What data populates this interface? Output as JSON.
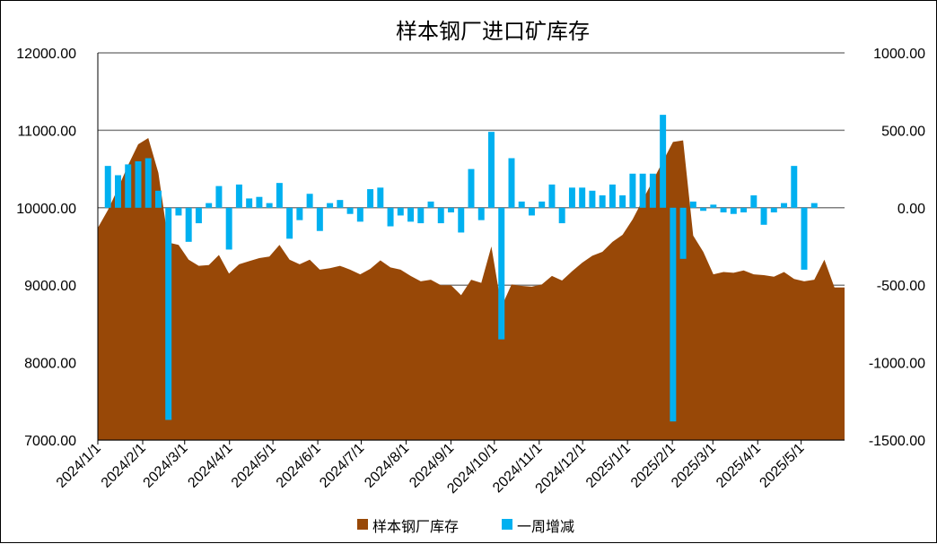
{
  "chart_data": {
    "type": "bar+area",
    "title": "样本钢厂进口矿库存",
    "left_axis": {
      "min": 7000,
      "max": 12000,
      "ticks": [
        "12000.00",
        "11000.00",
        "10000.00",
        "9000.00",
        "8000.00",
        "7000.00"
      ]
    },
    "right_axis": {
      "min": -1500,
      "max": 1000,
      "ticks": [
        "1000.00",
        "500.00",
        "0.00",
        "-500.00",
        "-1000.00",
        "-1500.00"
      ]
    },
    "x_date_labels": [
      "2024/1/1",
      "2024/2/1",
      "2024/3/1",
      "2024/4/1",
      "2024/5/1",
      "2024/6/1",
      "2024/7/1",
      "2024/8/1",
      "2024/9/1",
      "2024/10/1",
      "2024/11/1",
      "2024/12/1",
      "2025/1/1",
      "2025/2/1",
      "2025/3/1",
      "2025/4/1",
      "2025/5/1"
    ],
    "grid": "horizontal",
    "legend_position": "bottom",
    "colors": {
      "area": "#984807",
      "bars": "#00B0F0",
      "grid": "#808080"
    },
    "series": [
      {
        "name": "样本钢厂库存",
        "kind": "area",
        "axis": "left",
        "values": [
          9740,
          9970,
          10250,
          10550,
          10820,
          10900,
          10450,
          9550,
          9520,
          9330,
          9250,
          9260,
          9390,
          9150,
          9270,
          9310,
          9350,
          9370,
          9520,
          9330,
          9270,
          9330,
          9200,
          9220,
          9250,
          9200,
          9140,
          9210,
          9320,
          9230,
          9200,
          9120,
          9050,
          9070,
          9000,
          9000,
          8870,
          9070,
          9030,
          9500,
          8720,
          9010,
          8990,
          8980,
          9010,
          9120,
          9060,
          9180,
          9290,
          9380,
          9430,
          9560,
          9650,
          9850,
          10100,
          10350,
          10600,
          10850,
          10870,
          9640,
          9430,
          9140,
          9170,
          9160,
          9190,
          9140,
          9130,
          9110,
          9170,
          9080,
          9050,
          9070,
          9330,
          8970,
          8970
        ]
      },
      {
        "name": "一周增减",
        "kind": "bar",
        "axis": "right",
        "values": [
          270,
          210,
          280,
          300,
          320,
          110,
          -1370,
          -50,
          -220,
          -100,
          30,
          140,
          -270,
          150,
          60,
          70,
          30,
          160,
          -200,
          -80,
          90,
          -150,
          30,
          50,
          -40,
          -90,
          120,
          130,
          -120,
          -50,
          -90,
          -100,
          40,
          -100,
          -30,
          -160,
          250,
          -80,
          490,
          -850,
          320,
          40,
          -50,
          40,
          150,
          -100,
          130,
          130,
          110,
          80,
          150,
          80,
          220,
          220,
          220,
          600,
          -1380,
          -330,
          40,
          -20,
          20,
          -30,
          -40,
          -30,
          80,
          -110,
          -30,
          30,
          270,
          -400,
          30
        ],
        "offset": 1
      }
    ]
  }
}
